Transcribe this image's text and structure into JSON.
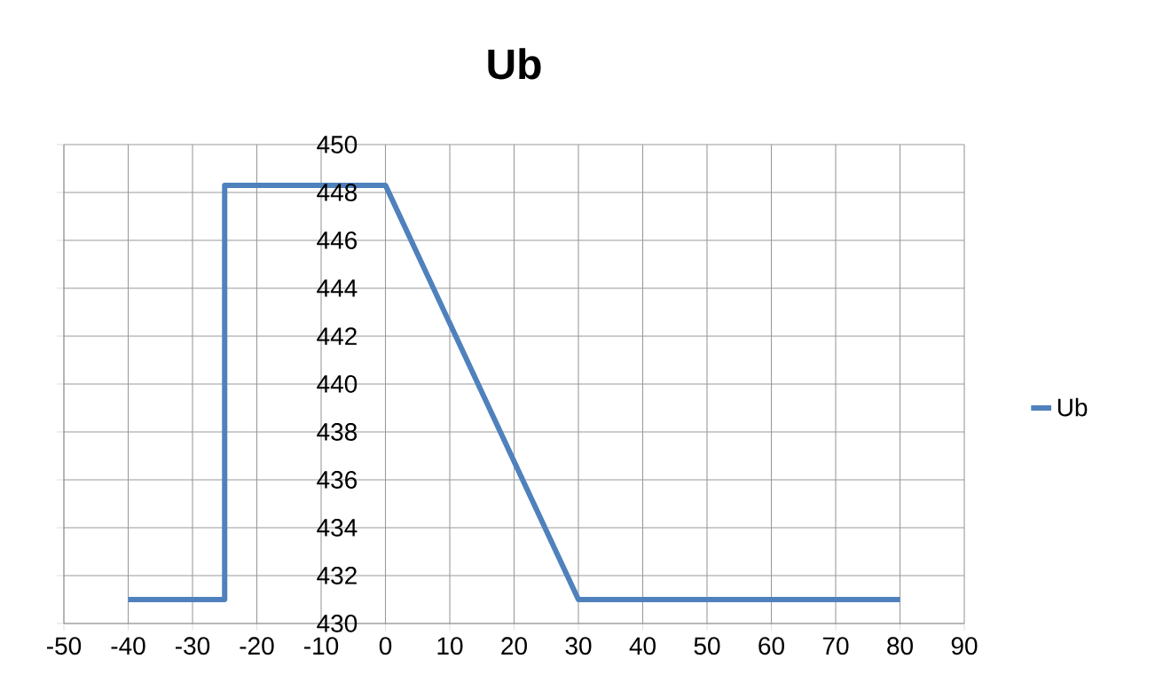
{
  "chart_data": {
    "type": "line",
    "title": "Ub",
    "x": [
      -40,
      -25,
      -25,
      0,
      30,
      80
    ],
    "series": [
      {
        "name": "Ub",
        "color": "#4f81bd",
        "values": [
          431,
          431,
          448.3,
          448.3,
          431,
          431
        ]
      }
    ],
    "xlim": [
      -50,
      90
    ],
    "xticks": [
      -50,
      -40,
      -30,
      -20,
      -10,
      0,
      10,
      20,
      30,
      40,
      50,
      60,
      70,
      80,
      90
    ],
    "ylim": [
      430,
      450
    ],
    "yticks": [
      430,
      432,
      434,
      436,
      438,
      440,
      442,
      444,
      446,
      448,
      450
    ],
    "grid": true,
    "legend": "right"
  }
}
